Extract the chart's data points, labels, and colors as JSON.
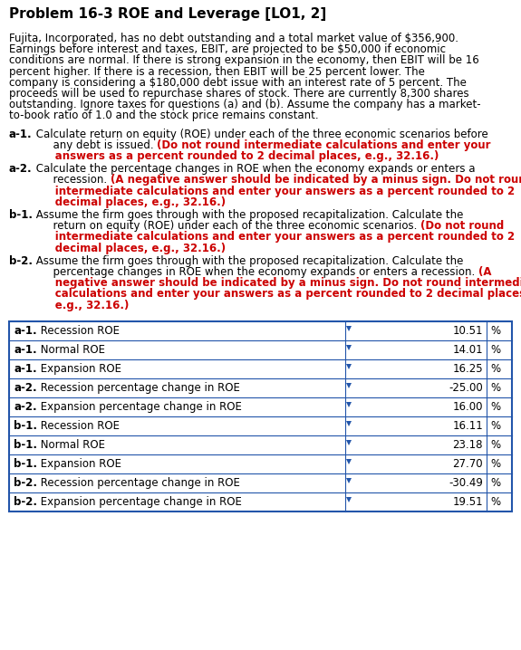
{
  "title": "Problem 16-3 ROE and Leverage [LO1, 2]",
  "body_lines": [
    "Fujita, Incorporated, has no debt outstanding and a total market value of $356,900.",
    "Earnings before interest and taxes, EBIT, are projected to be $50,000 if economic",
    "conditions are normal. If there is strong expansion in the economy, then EBIT will be 16",
    "percent higher. If there is a recession, then EBIT will be 25 percent lower. The",
    "company is considering a $180,000 debt issue with an interest rate of 5 percent. The",
    "proceeds will be used to repurchase shares of stock. There are currently 8,300 shares",
    "outstanding. Ignore taxes for questions (a) and (b). Assume the company has a market-",
    "to-book ratio of 1.0 and the stock price remains constant."
  ],
  "questions": [
    {
      "label": "a-1.",
      "segments": [
        {
          "text": " Calculate return on equity (ROE) under each of the three economic scenarios before",
          "bold": false,
          "red": false
        },
        {
          "text": "      any debt is issued. ",
          "bold": false,
          "red": false
        },
        {
          "text": "(Do not round intermediate calculations and enter your",
          "bold": true,
          "red": true
        },
        {
          "text": "      answers as a percent rounded to 2 decimal places, e.g., 32.16.)",
          "bold": true,
          "red": true
        }
      ],
      "lines": [
        {
          "normal": " Calculate return on equity (ROE) under each of the three economic scenarios before",
          "red": ""
        },
        {
          "normal": "      any debt is issued. ",
          "red": "(Do not round intermediate calculations and enter your"
        },
        {
          "normal": "",
          "red": "      answers as a percent rounded to 2 decimal places, e.g., 32.16.)"
        }
      ]
    },
    {
      "label": "a-2.",
      "lines": [
        {
          "normal": " Calculate the percentage changes in ROE when the economy expands or enters a",
          "red": ""
        },
        {
          "normal": "      recession. ",
          "red": "(A negative answer should be indicated by a minus sign. Do not round"
        },
        {
          "normal": "",
          "red": "      intermediate calculations and enter your answers as a percent rounded to 2"
        },
        {
          "normal": "",
          "red": "      decimal places, e.g., 32.16.)"
        }
      ]
    },
    {
      "label": "b-1.",
      "lines": [
        {
          "normal": " Assume the firm goes through with the proposed recapitalization. Calculate the",
          "red": ""
        },
        {
          "normal": "      return on equity (ROE) under each of the three economic scenarios. ",
          "red": "(Do not round"
        },
        {
          "normal": "",
          "red": "      intermediate calculations and enter your answers as a percent rounded to 2"
        },
        {
          "normal": "",
          "red": "      decimal places, e.g., 32.16.)"
        }
      ]
    },
    {
      "label": "b-2.",
      "lines": [
        {
          "normal": " Assume the firm goes through with the proposed recapitalization. Calculate the",
          "red": ""
        },
        {
          "normal": "      percentage changes in ROE when the economy expands or enters a recession. ",
          "red": "(A"
        },
        {
          "normal": "",
          "red": "      negative answer should be indicated by a minus sign. Do not round intermediate"
        },
        {
          "normal": "",
          "red": "      calculations and enter your answers as a percent rounded to 2 decimal places,"
        },
        {
          "normal": "",
          "red": "      e.g., 32.16.)"
        }
      ]
    }
  ],
  "table_rows": [
    {
      "bold_label": "a-1.",
      "rest_label": " Recession ROE",
      "value": "10.51",
      "pct": "%"
    },
    {
      "bold_label": "a-1.",
      "rest_label": " Normal ROE",
      "value": "14.01",
      "pct": "%"
    },
    {
      "bold_label": "a-1.",
      "rest_label": " Expansion ROE",
      "value": "16.25",
      "pct": "%"
    },
    {
      "bold_label": "a-2.",
      "rest_label": " Recession percentage change in ROE",
      "value": "-25.00",
      "pct": "%"
    },
    {
      "bold_label": "a-2.",
      "rest_label": " Expansion percentage change in ROE",
      "value": "16.00",
      "pct": "%"
    },
    {
      "bold_label": "b-1.",
      "rest_label": " Recession ROE",
      "value": "16.11",
      "pct": "%"
    },
    {
      "bold_label": "b-1.",
      "rest_label": " Normal ROE",
      "value": "23.18",
      "pct": "%"
    },
    {
      "bold_label": "b-1.",
      "rest_label": " Expansion ROE",
      "value": "27.70",
      "pct": "%"
    },
    {
      "bold_label": "b-2.",
      "rest_label": " Recession percentage change in ROE",
      "value": "-30.49",
      "pct": "%"
    },
    {
      "bold_label": "b-2.",
      "rest_label": " Expansion percentage change in ROE",
      "value": "19.51",
      "pct": "%"
    }
  ],
  "bg_color": "#ffffff",
  "border_color": "#2255aa",
  "red_color": "#cc0000",
  "black_color": "#000000",
  "title_fontsize": 11.0,
  "body_fontsize": 8.5,
  "q_fontsize": 8.5,
  "table_fontsize": 8.5
}
